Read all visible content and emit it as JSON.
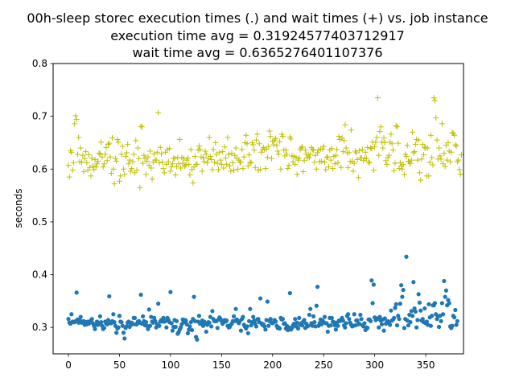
{
  "chart_data": {
    "type": "scatter",
    "title_lines": [
      "00h-sleep storec execution times (.) and wait times (+) vs. job instance",
      "execution time avg = 0.31924577403712917",
      "wait time avg = 0.6365276401107376"
    ],
    "xlabel": "",
    "ylabel": "seconds",
    "xlim": [
      -15,
      387
    ],
    "ylim": [
      0.25,
      0.8
    ],
    "x_ticks": [
      0,
      50,
      100,
      150,
      200,
      250,
      300,
      350
    ],
    "y_ticks": [
      0.3,
      0.4,
      0.5,
      0.6,
      0.7,
      0.8
    ],
    "x_tick_labels": [
      "0",
      "50",
      "100",
      "150",
      "200",
      "250",
      "300",
      "350"
    ],
    "y_tick_labels": [
      "0.3",
      "0.4",
      "0.5",
      "0.6",
      "0.7",
      "0.8"
    ],
    "grid": false,
    "colors": {
      "execution": "#1f77b4",
      "wait": "#bfbf00"
    },
    "series": [
      {
        "key": "wait",
        "marker": "+",
        "x_start": 0,
        "values": [
          0.607,
          0.585,
          0.635,
          0.632,
          0.598,
          0.612,
          0.686,
          0.701,
          0.694,
          0.628,
          0.66,
          0.614,
          0.64,
          0.613,
          0.626,
          0.595,
          0.62,
          0.633,
          0.612,
          0.598,
          0.627,
          0.603,
          0.587,
          0.621,
          0.606,
          0.599,
          0.618,
          0.604,
          0.61,
          0.615,
          0.63,
          0.629,
          0.651,
          0.623,
          0.604,
          0.61,
          0.628,
          0.641,
          0.616,
          0.647,
          0.649,
          0.623,
          0.592,
          0.659,
          0.6,
          0.572,
          0.62,
          0.615,
          0.656,
          0.651,
          0.577,
          0.587,
          0.628,
          0.643,
          0.6,
          0.59,
          0.624,
          0.631,
          0.647,
          0.61,
          0.617,
          0.596,
          0.601,
          0.614,
          0.628,
          0.593,
          0.654,
          0.598,
          0.64,
          0.62,
          0.565,
          0.681,
          0.68,
          0.611,
          0.626,
          0.62,
          0.59,
          0.615,
          0.623,
          0.607,
          0.634,
          0.602,
          0.581,
          0.613,
          0.629,
          0.617,
          0.617,
          0.632,
          0.707,
          0.612,
          0.641,
          0.629,
          0.613,
          0.601,
          0.593,
          0.632,
          0.609,
          0.637,
          0.614,
          0.639,
          0.596,
          0.604,
          0.61,
          0.62,
          0.62,
          0.589,
          0.605,
          0.622,
          0.61,
          0.656,
          0.602,
          0.622,
          0.611,
          0.62,
          0.605,
          0.608,
          0.617,
          0.621,
          0.609,
          0.589,
          0.637,
          0.599,
          0.574,
          0.604,
          0.624,
          0.609,
          0.609,
          0.636,
          0.644,
          0.637,
          0.623,
          0.596,
          0.622,
          0.614,
          0.634,
          0.628,
          0.612,
          0.62,
          0.66,
          0.624,
          0.618,
          0.599,
          0.637,
          0.613,
          0.65,
          0.628,
          0.611,
          0.599,
          0.632,
          0.617,
          0.609,
          0.633,
          0.602,
          0.642,
          0.621,
          0.609,
          0.66,
          0.628,
          0.606,
          0.596,
          0.63,
          0.612,
          0.598,
          0.626,
          0.64,
          0.621,
          0.6,
          0.617,
          0.613,
          0.613,
          0.637,
          0.601,
          0.623,
          0.65,
          0.664,
          0.648,
          0.606,
          0.627,
          0.613,
          0.612,
          0.65,
          0.646,
          0.636,
          0.603,
          0.655,
          0.666,
          0.598,
          0.648,
          0.599,
          0.632,
          0.637,
          0.641,
          0.637,
          0.601,
          0.638,
          0.622,
          0.643,
          0.672,
          0.662,
          0.62,
          0.653,
          0.646,
          0.655,
          0.658,
          0.645,
          0.634,
          0.628,
          0.652,
          0.6,
          0.666,
          0.662,
          0.636,
          0.625,
          0.636,
          0.628,
          0.601,
          0.607,
          0.661,
          0.657,
          0.625,
          0.614,
          0.624,
          0.609,
          0.622,
          0.59,
          0.617,
          0.621,
          0.637,
          0.64,
          0.642,
          0.595,
          0.616,
          0.636,
          0.628,
          0.621,
          0.628,
          0.622,
          0.628,
          0.641,
          0.637,
          0.636,
          0.613,
          0.626,
          0.6,
          0.631,
          0.636,
          0.614,
          0.638,
          0.615,
          0.638,
          0.643,
          0.613,
          0.599,
          0.622,
          0.623,
          0.604,
          0.636,
          0.617,
          0.639,
          0.601,
          0.624,
          0.61,
          0.626,
          0.637,
          0.612,
          0.662,
          0.656,
          0.603,
          0.659,
          0.633,
          0.654,
          0.684,
          0.64,
          0.631,
          0.603,
          0.631,
          0.614,
          0.674,
          0.615,
          0.596,
          0.611,
          0.634,
          0.631,
          0.618,
          0.584,
          0.635,
          0.621,
          0.621,
          0.637,
          0.616,
          0.621,
          0.632,
          0.62,
          0.641,
          0.613,
          0.612,
          0.64,
          0.639,
          0.651,
          0.598,
          0.642,
          0.651,
          0.66,
          0.735,
          0.626,
          0.671,
          0.68,
          0.651,
          0.64,
          0.659,
          0.65,
          0.616,
          0.609,
          0.622,
          0.626,
          0.651,
          0.666,
          0.648,
          0.636,
          0.597,
          0.611,
          0.682,
          0.68,
          0.649,
          0.601,
          0.612,
          0.606,
          0.6,
          0.609,
          0.59,
          0.628,
          0.624,
          0.645,
          0.615,
          0.614,
          0.61,
          0.617,
          0.67,
          0.631,
          0.633,
          0.647,
          0.656,
          0.617,
          0.655,
          0.593,
          0.579,
          0.619,
          0.647,
          0.627,
          0.641,
          0.64,
          0.587,
          0.64,
          0.587,
          0.613,
          0.664,
          0.622,
          0.608,
          0.735,
          0.73,
          0.697,
          0.655,
          0.619,
          0.64,
          0.625,
          0.619,
          0.686,
          0.61,
          0.63,
          0.605,
          0.645,
          0.617,
          0.65,
          0.634,
          0.614,
          0.632,
          0.669,
          0.668,
          0.664,
          0.646,
          0.644,
          0.614,
          0.617,
          0.599,
          0.59,
          0.627
        ]
      },
      {
        "key": "execution",
        "marker": ".",
        "x_start": 0,
        "values": [
          0.316,
          0.309,
          0.307,
          0.325,
          0.311,
          0.31,
          0.31,
          0.312,
          0.366,
          0.315,
          0.309,
          0.315,
          0.32,
          0.309,
          0.311,
          0.312,
          0.305,
          0.31,
          0.306,
          0.311,
          0.307,
          0.311,
          0.313,
          0.316,
          0.308,
          0.303,
          0.297,
          0.305,
          0.311,
          0.305,
          0.308,
          0.321,
          0.31,
          0.303,
          0.297,
          0.299,
          0.311,
          0.307,
          0.306,
          0.314,
          0.359,
          0.308,
          0.308,
          0.312,
          0.325,
          0.31,
          0.303,
          0.29,
          0.298,
          0.3,
          0.322,
          0.311,
          0.31,
          0.303,
          0.29,
          0.279,
          0.299,
          0.302,
          0.309,
          0.311,
          0.301,
          0.306,
          0.309,
          0.306,
          0.318,
          0.318,
          0.306,
          0.306,
          0.311,
          0.312,
          0.309,
          0.362,
          0.307,
          0.321,
          0.312,
          0.304,
          0.31,
          0.303,
          0.297,
          0.334,
          0.303,
          0.32,
          0.311,
          0.309,
          0.318,
          0.312,
          0.3,
          0.306,
          0.345,
          0.303,
          0.311,
          0.314,
          0.311,
          0.318,
          0.311,
          0.312,
          0.3,
          0.318,
          0.314,
          0.31,
          0.367,
          0.308,
          0.294,
          0.301,
          0.314,
          0.301,
          0.312,
          0.288,
          0.291,
          0.296,
          0.3,
          0.306,
          0.315,
          0.31,
          0.314,
          0.313,
          0.306,
          0.289,
          0.296,
          0.302,
          0.31,
          0.295,
          0.316,
          0.358,
          0.312,
          0.282,
          0.277,
          0.311,
          0.322,
          0.307,
          0.308,
          0.313,
          0.303,
          0.311,
          0.307,
          0.292,
          0.305,
          0.31,
          0.309,
          0.32,
          0.302,
          0.331,
          0.316,
          0.312,
          0.312,
          0.312,
          0.299,
          0.315,
          0.319,
          0.316,
          0.312,
          0.307,
          0.31,
          0.314,
          0.311,
          0.313,
          0.303,
          0.3,
          0.301,
          0.305,
          0.307,
          0.312,
          0.321,
          0.312,
          0.335,
          0.315,
          0.311,
          0.308,
          0.312,
          0.294,
          0.316,
          0.32,
          0.305,
          0.301,
          0.298,
          0.302,
          0.289,
          0.312,
          0.335,
          0.304,
          0.31,
          0.32,
          0.313,
          0.307,
          0.302,
          0.315,
          0.316,
          0.31,
          0.355,
          0.308,
          0.305,
          0.306,
          0.302,
          0.296,
          0.314,
          0.349,
          0.303,
          0.312,
          0.316,
          0.309,
          0.308,
          0.31,
          0.314,
          0.311,
          0.303,
          0.299,
          0.3,
          0.298,
          0.318,
          0.315,
          0.316,
          0.307,
          0.308,
          0.298,
          0.303,
          0.295,
          0.3,
          0.365,
          0.296,
          0.299,
          0.304,
          0.307,
          0.316,
          0.302,
          0.309,
          0.298,
          0.318,
          0.305,
          0.308,
          0.304,
          0.311,
          0.314,
          0.299,
          0.307,
          0.302,
          0.303,
          0.324,
          0.335,
          0.308,
          0.303,
          0.321,
          0.31,
          0.302,
          0.341,
          0.377,
          0.303,
          0.308,
          0.315,
          0.306,
          0.313,
          0.31,
          0.32,
          0.308,
          0.308,
          0.292,
          0.303,
          0.318,
          0.304,
          0.318,
          0.311,
          0.31,
          0.304,
          0.296,
          0.309,
          0.303,
          0.313,
          0.312,
          0.314,
          0.318,
          0.313,
          0.304,
          0.3,
          0.308,
          0.322,
          0.325,
          0.316,
          0.309,
          0.305,
          0.302,
          0.303,
          0.325,
          0.304,
          0.313,
          0.313,
          0.306,
          0.307,
          0.324,
          0.316,
          0.304,
          0.302,
          0.308,
          0.295,
          0.3,
          0.299,
          0.315,
          0.315,
          0.312,
          0.389,
          0.346,
          0.381,
          0.319,
          0.314,
          0.317,
          0.316,
          0.3,
          0.32,
          0.313,
          0.306,
          0.315,
          0.294,
          0.317,
          0.307,
          0.31,
          0.312,
          0.309,
          0.305,
          0.332,
          0.313,
          0.315,
          0.318,
          0.337,
          0.344,
          0.304,
          0.322,
          0.316,
          0.345,
          0.38,
          0.358,
          0.371,
          0.299,
          0.316,
          0.434,
          0.313,
          0.304,
          0.324,
          0.31,
          0.331,
          0.322,
          0.386,
          0.336,
          0.33,
          0.3,
          0.314,
          0.363,
          0.347,
          0.332,
          0.313,
          0.316,
          0.31,
          0.336,
          0.308,
          0.311,
          0.305,
          0.344,
          0.319,
          0.303,
          0.322,
          0.342,
          0.342,
          0.346,
          0.325,
          0.316,
          0.321,
          0.301,
          0.322,
          0.312,
          0.346,
          0.325,
          0.388,
          0.358,
          0.37,
          0.342,
          0.352,
          0.346,
          0.302,
          0.299,
          0.303,
          0.322,
          0.319,
          0.333,
          0.305,
          0.312
        ]
      }
    ]
  }
}
